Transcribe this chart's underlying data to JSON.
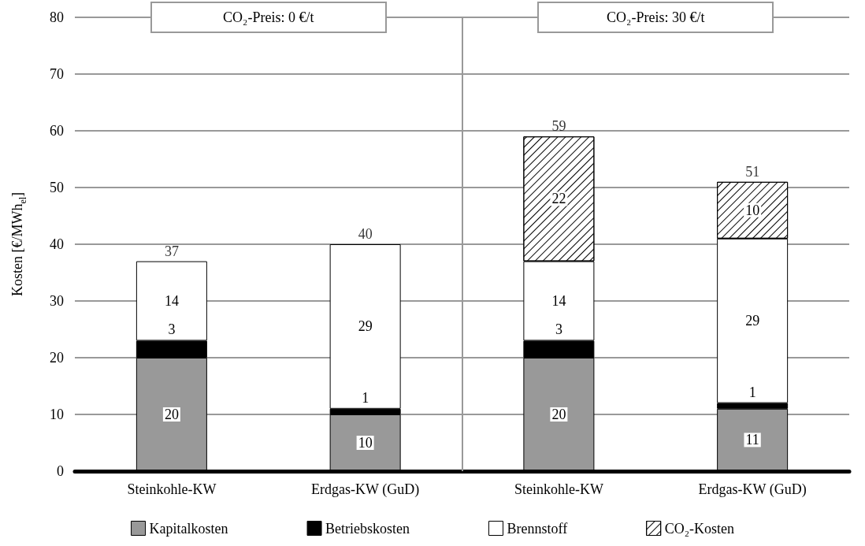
{
  "chart_data": {
    "type": "bar",
    "stacked": true,
    "ylabel": "Kosten [€/MWh$_{el}$]",
    "categories": [
      "Steinkohle-KW",
      "Erdgas-KW (GuD)",
      "Steinkohle-KW",
      "Erdgas-KW (GuD)"
    ],
    "series": [
      {
        "name": "Kapitalkosten",
        "color": "#999999",
        "values": [
          20,
          10,
          20,
          11
        ]
      },
      {
        "name": "Betriebskosten",
        "color": "#000000",
        "values": [
          3,
          1,
          3,
          1
        ]
      },
      {
        "name": "Brennstoff",
        "color": "#ffffff",
        "values": [
          14,
          29,
          14,
          29
        ]
      },
      {
        "name": "CO₂-Kosten",
        "color": "#ffffff",
        "values": [
          null,
          null,
          22,
          10
        ]
      }
    ],
    "totals": [
      "37",
      "40",
      "59",
      "51"
    ],
    "data_labels": true,
    "ylim": [
      0,
      80
    ],
    "yticks": [
      0,
      10,
      20,
      30,
      40,
      50,
      60,
      70,
      80
    ],
    "grid": "y",
    "legend": "bottom",
    "annotations": [
      "CO₂-Preis: 0 €/t",
      "CO₂-Preis: 30 €/t"
    ]
  }
}
